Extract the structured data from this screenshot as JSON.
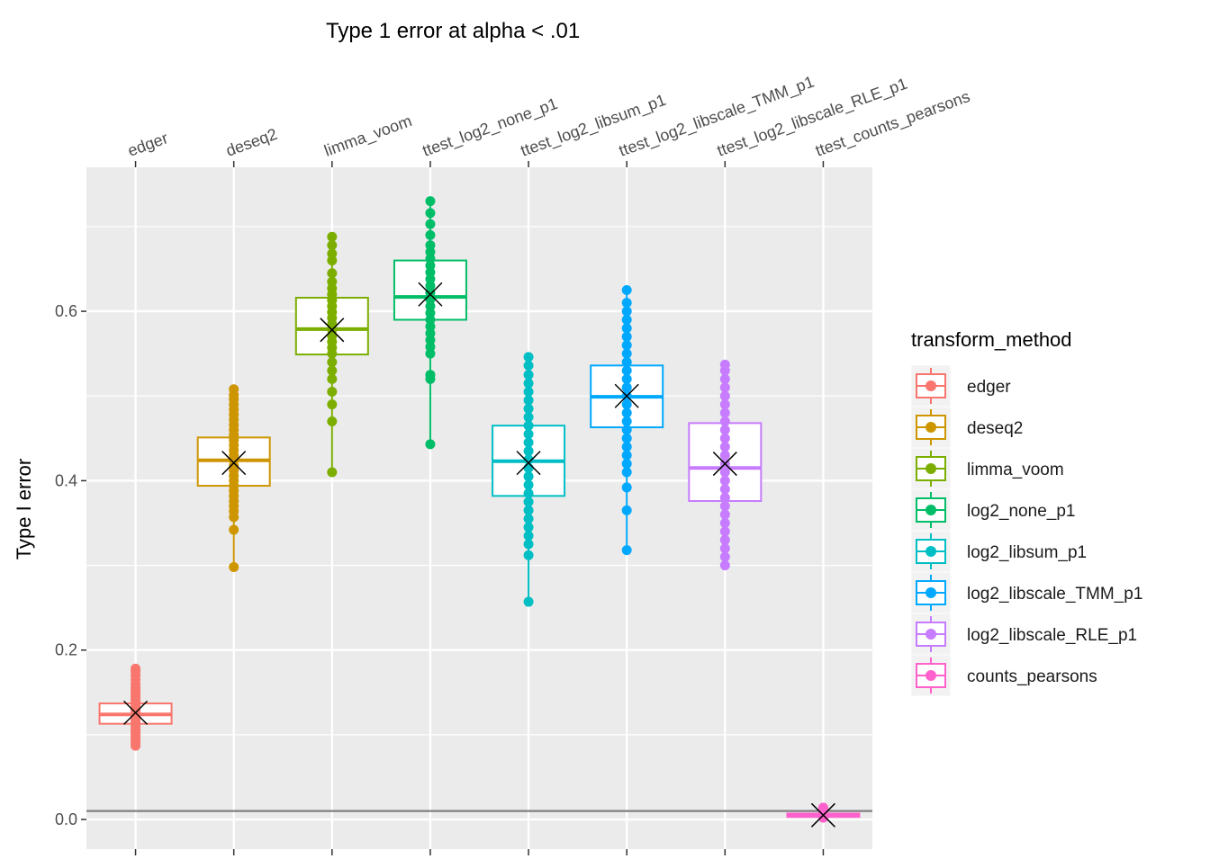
{
  "chart_data": {
    "type": "boxplot",
    "title": "Type 1 error at alpha < .01",
    "xlabel": "",
    "ylabel": "Type I error",
    "x_axis_position": "top",
    "ylim": [
      -0.035,
      0.77
    ],
    "yticks": [
      0.0,
      0.2,
      0.4,
      0.6
    ],
    "ytick_labels": [
      "0.0",
      "0.2",
      "0.4",
      "0.6"
    ],
    "reference_line": {
      "y": 0.01,
      "color": "#808080"
    },
    "grid": true,
    "legend": {
      "title": "transform_method",
      "position": "right"
    },
    "mean_marker": "x",
    "categories": [
      "edger",
      "deseq2",
      "limma_voom",
      "ttest_log2_none_p1",
      "ttest_log2_libsum_p1",
      "ttest_log2_libscale_TMM_p1",
      "ttest_log2_libscale_RLE_p1",
      "ttest_counts_pearsons"
    ],
    "series": [
      {
        "name": "edger",
        "color": "#F8766D",
        "q1": 0.113,
        "median": 0.124,
        "q3": 0.137,
        "mean": 0.126,
        "points": [
          0.087,
          0.09,
          0.093,
          0.096,
          0.099,
          0.102,
          0.105,
          0.108,
          0.111,
          0.114,
          0.117,
          0.12,
          0.123,
          0.126,
          0.129,
          0.132,
          0.135,
          0.138,
          0.141,
          0.144,
          0.147,
          0.15,
          0.153,
          0.156,
          0.16,
          0.165,
          0.17,
          0.175,
          0.178
        ]
      },
      {
        "name": "deseq2",
        "color": "#CD9600",
        "q1": 0.394,
        "median": 0.424,
        "q3": 0.451,
        "mean": 0.421,
        "points": [
          0.298,
          0.342,
          0.357,
          0.364,
          0.37,
          0.376,
          0.382,
          0.388,
          0.394,
          0.4,
          0.406,
          0.412,
          0.418,
          0.424,
          0.43,
          0.436,
          0.442,
          0.448,
          0.454,
          0.46,
          0.466,
          0.472,
          0.478,
          0.484,
          0.49,
          0.496,
          0.501,
          0.508
        ]
      },
      {
        "name": "limma_voom",
        "color": "#7CAE00",
        "q1": 0.549,
        "median": 0.579,
        "q3": 0.616,
        "mean": 0.578,
        "points": [
          0.41,
          0.47,
          0.49,
          0.505,
          0.52,
          0.53,
          0.54,
          0.55,
          0.557,
          0.564,
          0.571,
          0.578,
          0.585,
          0.592,
          0.599,
          0.606,
          0.613,
          0.62,
          0.627,
          0.635,
          0.645,
          0.66,
          0.668,
          0.678,
          0.688
        ]
      },
      {
        "name": "log2_none_p1",
        "color": "#00BE67",
        "q1": 0.59,
        "median": 0.617,
        "q3": 0.66,
        "mean": 0.62,
        "points": [
          0.443,
          0.52,
          0.525,
          0.55,
          0.558,
          0.566,
          0.574,
          0.582,
          0.59,
          0.598,
          0.606,
          0.614,
          0.622,
          0.63,
          0.638,
          0.646,
          0.654,
          0.662,
          0.67,
          0.678,
          0.69,
          0.703,
          0.716,
          0.73
        ]
      },
      {
        "name": "log2_libsum_p1",
        "color": "#00BFC4",
        "q1": 0.382,
        "median": 0.423,
        "q3": 0.465,
        "mean": 0.421,
        "points": [
          0.257,
          0.312,
          0.325,
          0.335,
          0.345,
          0.355,
          0.365,
          0.375,
          0.385,
          0.395,
          0.405,
          0.415,
          0.425,
          0.435,
          0.445,
          0.455,
          0.465,
          0.475,
          0.485,
          0.495,
          0.505,
          0.515,
          0.525,
          0.536,
          0.546
        ]
      },
      {
        "name": "log2_libscale_TMM_p1",
        "color": "#00A9FF",
        "q1": 0.463,
        "median": 0.499,
        "q3": 0.536,
        "mean": 0.5,
        "points": [
          0.318,
          0.365,
          0.392,
          0.41,
          0.42,
          0.43,
          0.44,
          0.45,
          0.46,
          0.47,
          0.48,
          0.49,
          0.5,
          0.51,
          0.52,
          0.53,
          0.54,
          0.55,
          0.56,
          0.57,
          0.58,
          0.59,
          0.6,
          0.61,
          0.625
        ]
      },
      {
        "name": "log2_libscale_RLE_p1",
        "color": "#C77CFF",
        "q1": 0.376,
        "median": 0.415,
        "q3": 0.468,
        "mean": 0.42,
        "points": [
          0.3,
          0.31,
          0.32,
          0.33,
          0.34,
          0.35,
          0.36,
          0.37,
          0.38,
          0.39,
          0.4,
          0.41,
          0.42,
          0.43,
          0.44,
          0.45,
          0.46,
          0.47,
          0.48,
          0.49,
          0.5,
          0.51,
          0.52,
          0.53,
          0.537
        ]
      },
      {
        "name": "counts_pearsons",
        "color": "#FF61CC",
        "q1": 0.003,
        "median": 0.005,
        "q3": 0.007,
        "mean": 0.005,
        "points": [
          0.002,
          0.004,
          0.006,
          0.008,
          0.01,
          0.012,
          0.014
        ]
      }
    ]
  }
}
